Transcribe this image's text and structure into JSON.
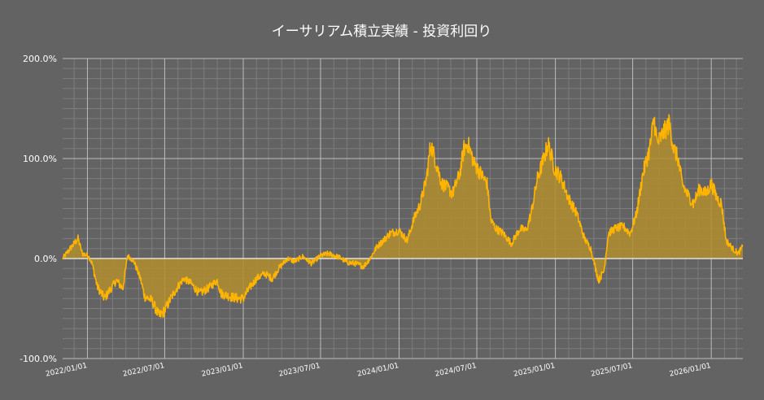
{
  "chart_data": {
    "type": "area",
    "title": "イーサリアム積立実績 - 投資利回り",
    "ylim": [
      -100,
      200
    ],
    "xlim": [
      "2021-11-04",
      "2026-03-16"
    ],
    "y_ticks": [
      {
        "value": -100,
        "label": "-100.0%"
      },
      {
        "value": 0,
        "label": "0.0%"
      },
      {
        "value": 100,
        "label": "100.0%"
      },
      {
        "value": 200,
        "label": "200.0%"
      }
    ],
    "x_ticks": [
      {
        "value": "2022-01-01",
        "label": "2022/01/01"
      },
      {
        "value": "2022-07-01",
        "label": "2022/07/01"
      },
      {
        "value": "2023-01-01",
        "label": "2023/01/01"
      },
      {
        "value": "2023-07-01",
        "label": "2023/07/01"
      },
      {
        "value": "2024-01-01",
        "label": "2024/01/01"
      },
      {
        "value": "2024-07-01",
        "label": "2024/07/01"
      },
      {
        "value": "2025-01-01",
        "label": "2025/01/01"
      },
      {
        "value": "2025-07-01",
        "label": "2025/07/01"
      },
      {
        "value": "2026-01-01",
        "label": "2026/01/01"
      }
    ],
    "grid": true,
    "colors": {
      "background": "#636363",
      "line": "#ffb400",
      "fill": "#b08d2e",
      "grid_major": "#bdbdbd",
      "grid_minor": "#7d7d7d",
      "zero_line": "#ffffff",
      "text": "#ffffff"
    },
    "series": [
      {
        "points": [
          [
            "2021-11-04",
            0
          ],
          [
            "2021-11-18",
            8
          ],
          [
            "2021-12-01",
            15
          ],
          [
            "2021-12-10",
            20
          ],
          [
            "2021-12-20",
            5
          ],
          [
            "2022-01-03",
            3
          ],
          [
            "2022-01-12",
            -5
          ],
          [
            "2022-01-24",
            -28
          ],
          [
            "2022-02-10",
            -40
          ],
          [
            "2022-02-25",
            -30
          ],
          [
            "2022-03-10",
            -22
          ],
          [
            "2022-03-25",
            -30
          ],
          [
            "2022-04-05",
            3
          ],
          [
            "2022-04-20",
            -3
          ],
          [
            "2022-05-05",
            -20
          ],
          [
            "2022-05-15",
            -38
          ],
          [
            "2022-06-01",
            -42
          ],
          [
            "2022-06-18",
            -58
          ],
          [
            "2022-07-01",
            -52
          ],
          [
            "2022-07-15",
            -40
          ],
          [
            "2022-08-01",
            -28
          ],
          [
            "2022-08-15",
            -20
          ],
          [
            "2022-09-01",
            -25
          ],
          [
            "2022-09-20",
            -35
          ],
          [
            "2022-10-10",
            -30
          ],
          [
            "2022-11-01",
            -22
          ],
          [
            "2022-11-10",
            -35
          ],
          [
            "2022-12-01",
            -38
          ],
          [
            "2022-12-20",
            -40
          ],
          [
            "2023-01-01",
            -40
          ],
          [
            "2023-01-15",
            -30
          ],
          [
            "2023-02-01",
            -20
          ],
          [
            "2023-02-20",
            -15
          ],
          [
            "2023-03-10",
            -20
          ],
          [
            "2023-03-25",
            -10
          ],
          [
            "2023-04-15",
            0
          ],
          [
            "2023-05-01",
            -3
          ],
          [
            "2023-05-20",
            2
          ],
          [
            "2023-06-10",
            -5
          ],
          [
            "2023-07-01",
            3
          ],
          [
            "2023-07-20",
            5
          ],
          [
            "2023-08-15",
            1
          ],
          [
            "2023-09-01",
            -4
          ],
          [
            "2023-09-20",
            -5
          ],
          [
            "2023-10-10",
            -8
          ],
          [
            "2023-10-25",
            0
          ],
          [
            "2023-11-10",
            12
          ],
          [
            "2023-11-25",
            18
          ],
          [
            "2023-12-10",
            25
          ],
          [
            "2024-01-01",
            28
          ],
          [
            "2024-01-20",
            18
          ],
          [
            "2024-02-05",
            40
          ],
          [
            "2024-02-20",
            55
          ],
          [
            "2024-03-05",
            80
          ],
          [
            "2024-03-15",
            115
          ],
          [
            "2024-03-28",
            95
          ],
          [
            "2024-04-10",
            75
          ],
          [
            "2024-04-25",
            70
          ],
          [
            "2024-05-05",
            65
          ],
          [
            "2024-05-22",
            85
          ],
          [
            "2024-06-01",
            110
          ],
          [
            "2024-06-10",
            115
          ],
          [
            "2024-06-25",
            95
          ],
          [
            "2024-07-10",
            85
          ],
          [
            "2024-07-25",
            75
          ],
          [
            "2024-08-03",
            38
          ],
          [
            "2024-08-15",
            30
          ],
          [
            "2024-09-01",
            25
          ],
          [
            "2024-09-20",
            15
          ],
          [
            "2024-10-10",
            30
          ],
          [
            "2024-10-25",
            28
          ],
          [
            "2024-11-05",
            45
          ],
          [
            "2024-11-20",
            80
          ],
          [
            "2024-12-05",
            100
          ],
          [
            "2024-12-15",
            115
          ],
          [
            "2024-12-30",
            90
          ],
          [
            "2025-01-15",
            80
          ],
          [
            "2025-02-01",
            60
          ],
          [
            "2025-02-20",
            45
          ],
          [
            "2025-03-10",
            20
          ],
          [
            "2025-03-25",
            10
          ],
          [
            "2025-04-05",
            -10
          ],
          [
            "2025-04-12",
            -22
          ],
          [
            "2025-04-25",
            -12
          ],
          [
            "2025-05-05",
            25
          ],
          [
            "2025-05-20",
            30
          ],
          [
            "2025-06-10",
            32
          ],
          [
            "2025-06-25",
            25
          ],
          [
            "2025-07-10",
            45
          ],
          [
            "2025-07-25",
            85
          ],
          [
            "2025-08-10",
            110
          ],
          [
            "2025-08-20",
            140
          ],
          [
            "2025-08-28",
            115
          ],
          [
            "2025-09-10",
            125
          ],
          [
            "2025-09-25",
            135
          ],
          [
            "2025-10-05",
            110
          ],
          [
            "2025-10-15",
            100
          ],
          [
            "2025-10-25",
            75
          ],
          [
            "2025-11-05",
            65
          ],
          [
            "2025-11-20",
            55
          ],
          [
            "2025-12-05",
            70
          ],
          [
            "2025-12-20",
            65
          ],
          [
            "2026-01-01",
            75
          ],
          [
            "2026-01-15",
            60
          ],
          [
            "2026-01-25",
            55
          ],
          [
            "2026-02-05",
            18
          ],
          [
            "2026-02-20",
            10
          ],
          [
            "2026-03-05",
            5
          ],
          [
            "2026-03-16",
            12
          ]
        ]
      }
    ]
  }
}
